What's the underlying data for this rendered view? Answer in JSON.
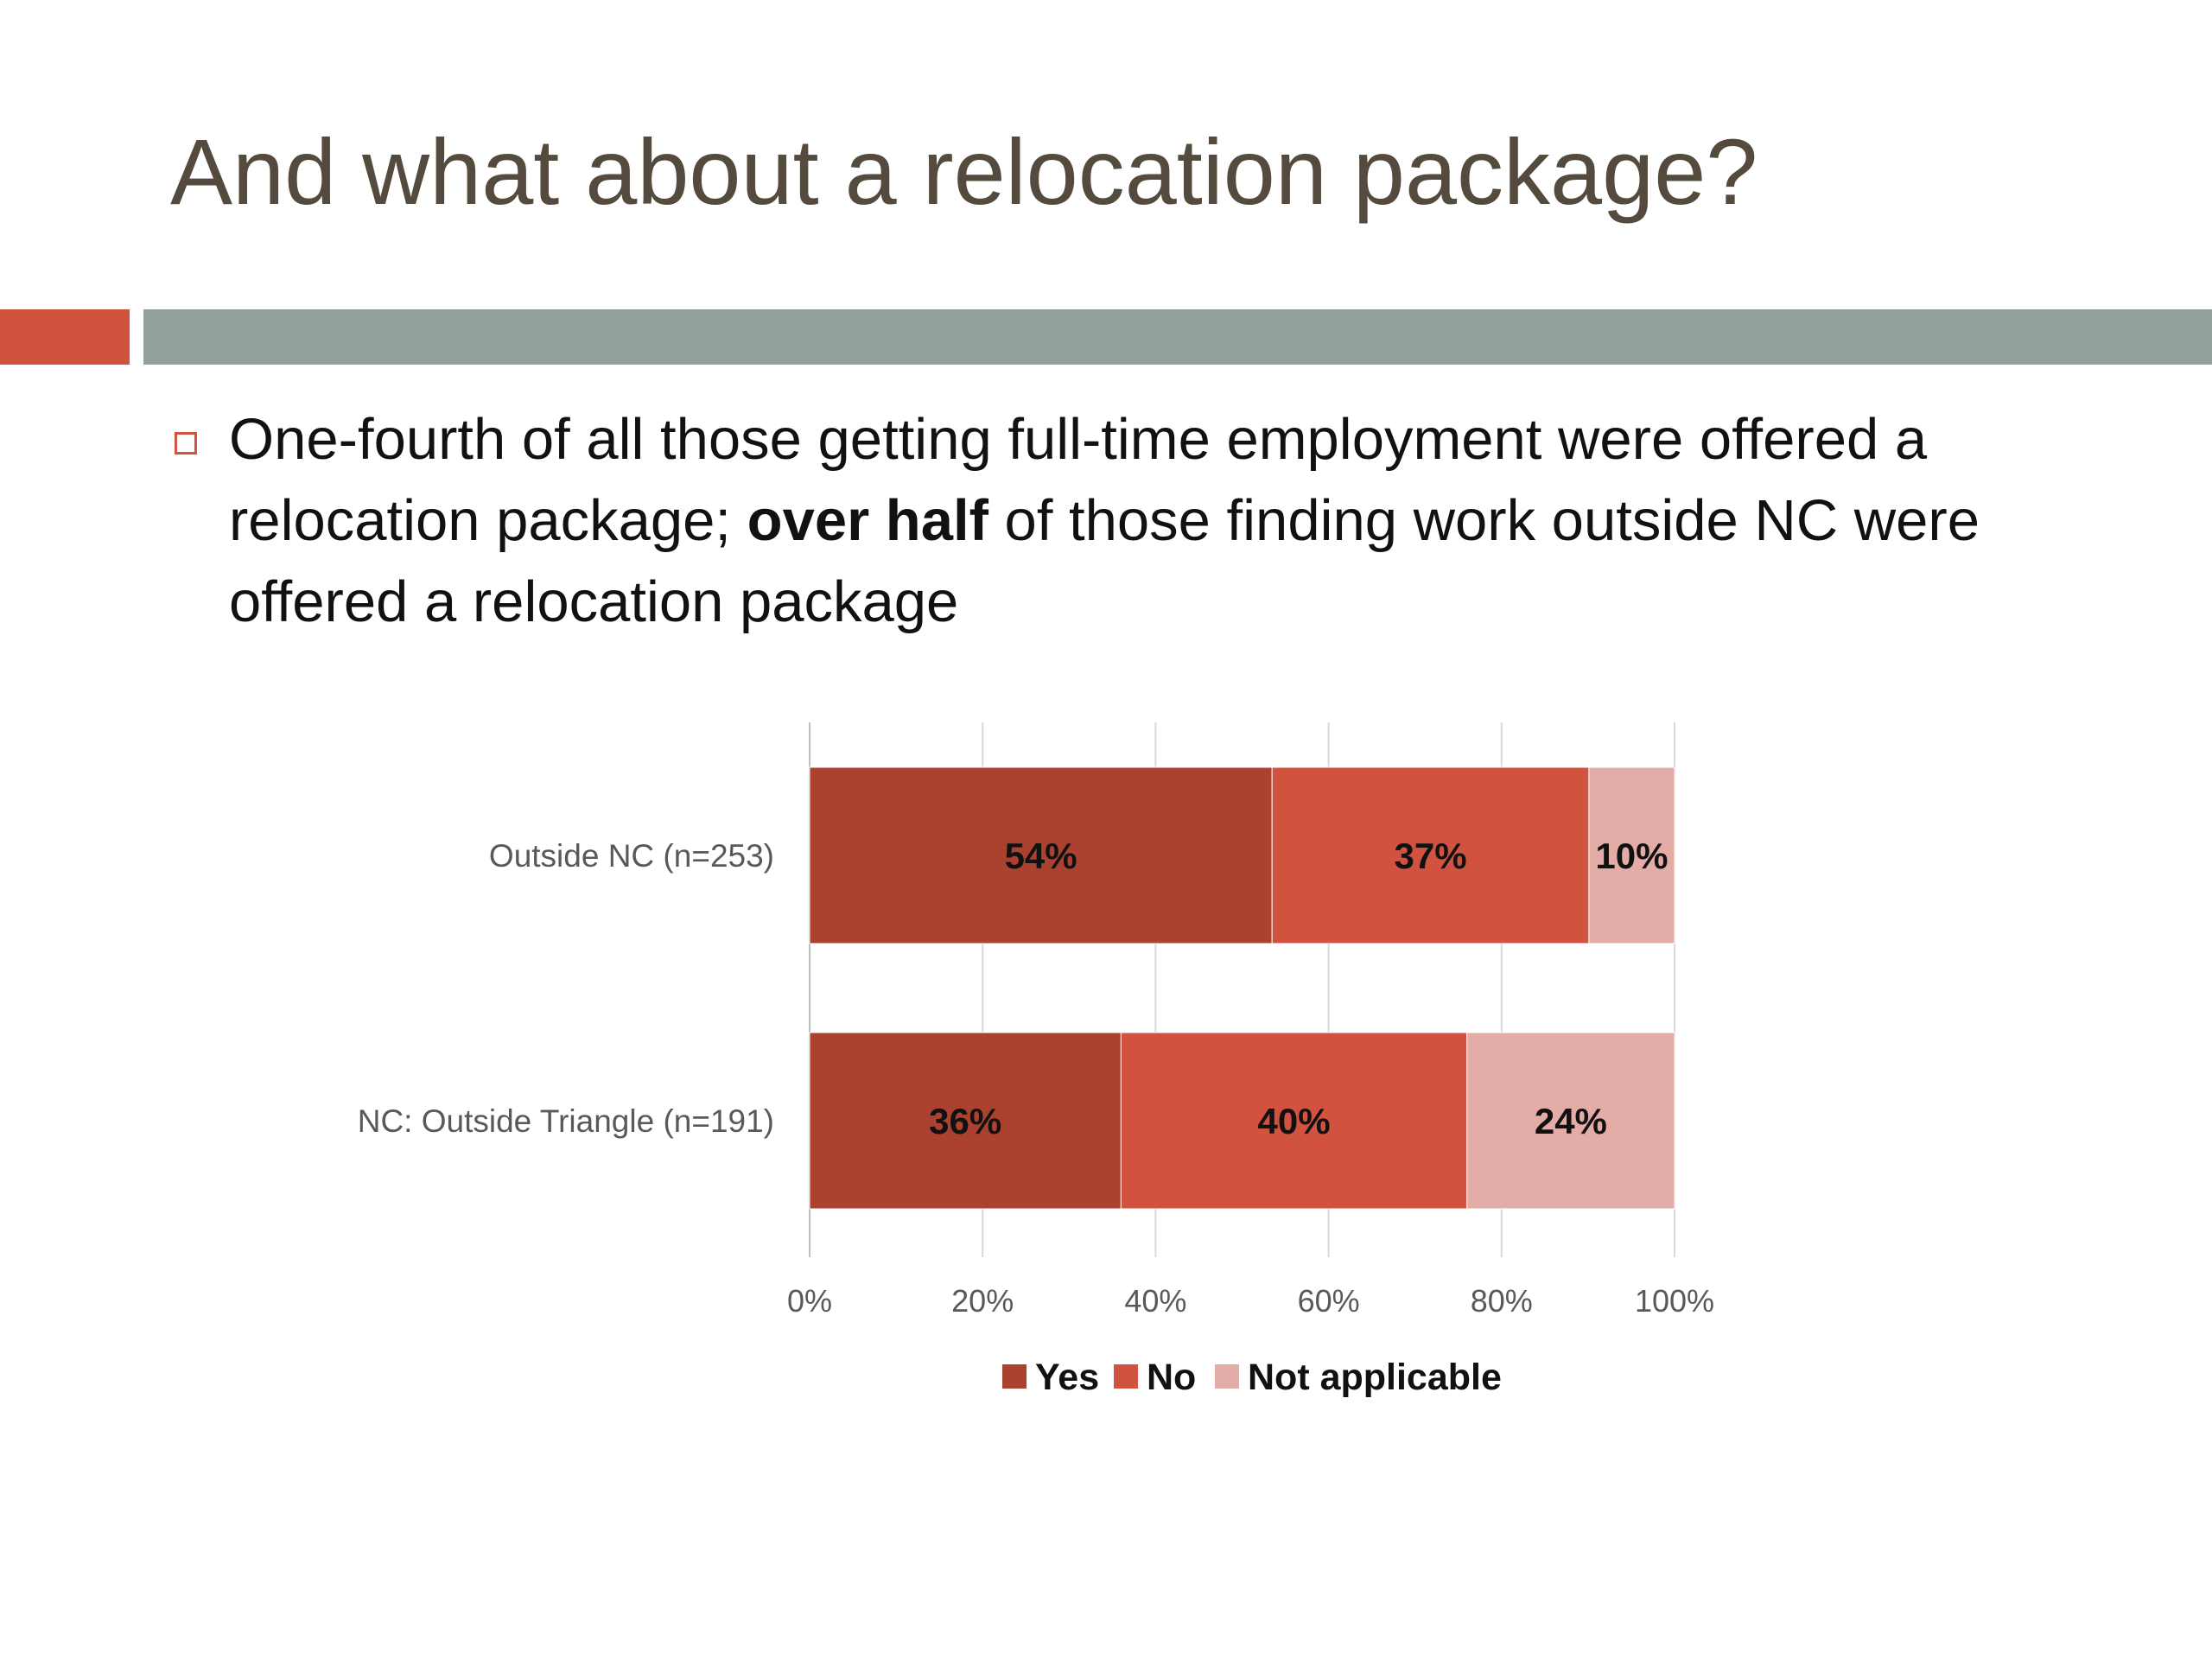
{
  "slide": {
    "title": "And what about a relocation package?",
    "bullet_part1": "One-fourth of all those getting full-time employment were offered a relocation package; ",
    "bullet_bold": "over half",
    "bullet_part2": " of those finding work outside NC were offered a relocation package"
  },
  "colors": {
    "accent": "#d0533e",
    "bar_gray": "#93a19a",
    "title_text": "#544a3d",
    "yes": "#ab4230",
    "no": "#d1533f",
    "na": "#e3aca6"
  },
  "chart_data": {
    "type": "bar",
    "orientation": "horizontal",
    "stacked": true,
    "title": "",
    "xlabel": "",
    "ylabel": "",
    "categories": [
      "Outside NC (n=253)",
      "NC: Outside Triangle (n=191)"
    ],
    "series": [
      {
        "name": "Yes",
        "values": [
          54,
          36
        ],
        "labels": [
          "54%",
          "36%"
        ]
      },
      {
        "name": "No",
        "values": [
          37,
          40
        ],
        "labels": [
          "37%",
          "40%"
        ]
      },
      {
        "name": "Not applicable",
        "values": [
          10,
          24
        ],
        "labels": [
          "10%",
          "24%"
        ]
      }
    ],
    "xlim": [
      0,
      100
    ],
    "xticks": [
      "0%",
      "20%",
      "40%",
      "60%",
      "80%",
      "100%"
    ],
    "grid": "vertical",
    "legend": "bottom"
  }
}
